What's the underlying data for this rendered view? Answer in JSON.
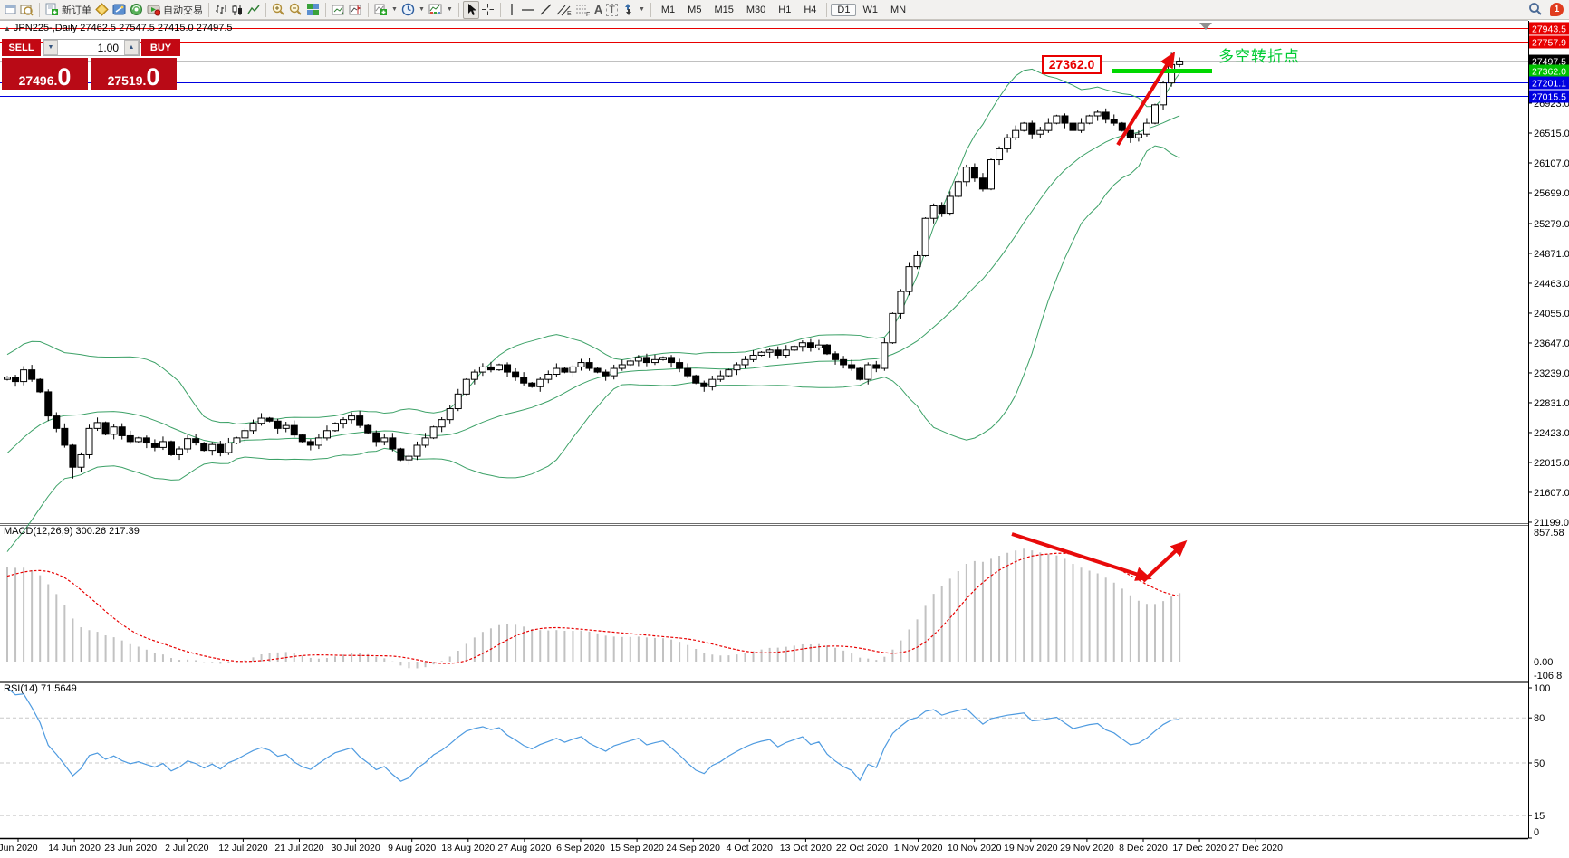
{
  "toolbar": {
    "labels": {
      "new_order": "新订单",
      "auto_trading": "自动交易"
    },
    "timeframes": [
      "M1",
      "M5",
      "M15",
      "M30",
      "H1",
      "H4",
      "D1",
      "W1",
      "MN"
    ],
    "active_timeframe": "D1",
    "notification_count": "1"
  },
  "one_click": {
    "sell_label": "SELL",
    "buy_label": "BUY",
    "volume": "1.00",
    "sell_price_main": "27496",
    "sell_price_big": "0",
    "buy_price_main": "27519",
    "buy_price_big": "0"
  },
  "chart_header": {
    "symbol_title": "JPN225-,Daily  27462.5 27547.5 27415.0 27497.5"
  },
  "annotations": {
    "level_box": "27362.0",
    "turning_point_text": "多空转折点"
  },
  "chart_data": {
    "type": "candlestick",
    "symbol": "JPN225",
    "timeframe": "Daily",
    "title_ohlc": [
      27462.5,
      27547.5,
      27415.0,
      27497.5
    ],
    "ylim": [
      21199.0,
      27943.5
    ],
    "price_ticks": [
      "26923.0",
      "26515.0",
      "26107.0",
      "25699.0",
      "25279.0",
      "24871.0",
      "24463.0",
      "24055.0",
      "23647.0",
      "23239.0",
      "22831.0",
      "22423.0",
      "22015.0",
      "21607.0",
      "21199.0"
    ],
    "x_labels": [
      "Jun 2020",
      "14 Jun 2020",
      "23 Jun 2020",
      "2 Jul 2020",
      "12 Jul 2020",
      "21 Jul 2020",
      "30 Jul 2020",
      "9 Aug 2020",
      "18 Aug 2020",
      "27 Aug 2020",
      "6 Sep 2020",
      "15 Sep 2020",
      "24 Sep 2020",
      "4 Oct 2020",
      "13 Oct 2020",
      "22 Oct 2020",
      "1 Nov 2020",
      "10 Nov 2020",
      "19 Nov 2020",
      "29 Nov 2020",
      "8 Dec 2020",
      "17 Dec 2020",
      "27 Dec 2020"
    ],
    "closes": [
      23180,
      23120,
      23280,
      23150,
      22980,
      22650,
      22480,
      22250,
      21950,
      22120,
      22480,
      22560,
      22400,
      22500,
      22380,
      22300,
      22350,
      22280,
      22220,
      22300,
      22120,
      22200,
      22340,
      22280,
      22180,
      22260,
      22150,
      22280,
      22350,
      22450,
      22550,
      22620,
      22580,
      22480,
      22520,
      22390,
      22300,
      22250,
      22350,
      22450,
      22550,
      22600,
      22650,
      22520,
      22420,
      22300,
      22350,
      22200,
      22050,
      22100,
      22250,
      22350,
      22500,
      22600,
      22750,
      22950,
      23150,
      23250,
      23320,
      23280,
      23350,
      23250,
      23180,
      23100,
      23050,
      23150,
      23220,
      23300,
      23250,
      23320,
      23380,
      23300,
      23250,
      23200,
      23300,
      23350,
      23400,
      23450,
      23380,
      23420,
      23450,
      23380,
      23300,
      23200,
      23100,
      23050,
      23150,
      23200,
      23280,
      23350,
      23420,
      23480,
      23520,
      23550,
      23480,
      23550,
      23600,
      23650,
      23580,
      23620,
      23500,
      23420,
      23350,
      23300,
      23150,
      23350,
      23300,
      23650,
      24050,
      24350,
      24690,
      24840,
      25350,
      25520,
      25420,
      25650,
      25850,
      26050,
      25900,
      25750,
      26150,
      26300,
      26450,
      26550,
      26650,
      26500,
      26550,
      26650,
      26750,
      26650,
      26550,
      26650,
      26750,
      26800,
      26700,
      26650,
      26550,
      26450,
      26500,
      26650,
      26900,
      27200,
      27450,
      27497.5
    ],
    "levels": [
      {
        "label": "27943.5",
        "price": 27943.5,
        "color": "#e80000",
        "type": "line"
      },
      {
        "label": "27757.9",
        "price": 27757.9,
        "color": "#e80000",
        "type": "line"
      },
      {
        "label": "27497.5",
        "price": 27497.5,
        "color": "#000000",
        "line_color": "#c0c0c0",
        "type": "current"
      },
      {
        "label": "27362.0",
        "price": 27362.0,
        "color": "#00c000",
        "type": "line"
      },
      {
        "label": "27201.1",
        "price": 27201.1,
        "color": "#0000e0",
        "type": "line"
      },
      {
        "label": "27015.5",
        "price": 27015.5,
        "color": "#0000e0",
        "type": "line"
      }
    ],
    "bollinger": {
      "period": 20,
      "deviation": 2,
      "color": "#3ca167"
    },
    "macd": {
      "label": "MACD(12,26,9) 300.26 217.39",
      "params": [
        12,
        26,
        9
      ],
      "current_values": [
        300.26,
        217.39
      ],
      "ticks": [
        "857.58",
        "0.00",
        "-106.8"
      ],
      "max": 857.58,
      "min": -106.8,
      "histogram_color": "#c2c2c2",
      "signal_color": "#e80000"
    },
    "rsi": {
      "label": "RSI(14) 71.5649",
      "period": 14,
      "value": 71.5649,
      "ticks": [
        "100",
        "80",
        "50",
        "15",
        "0"
      ],
      "dashed_levels": [
        80,
        50,
        15
      ],
      "line_color": "#4f9be0"
    }
  }
}
